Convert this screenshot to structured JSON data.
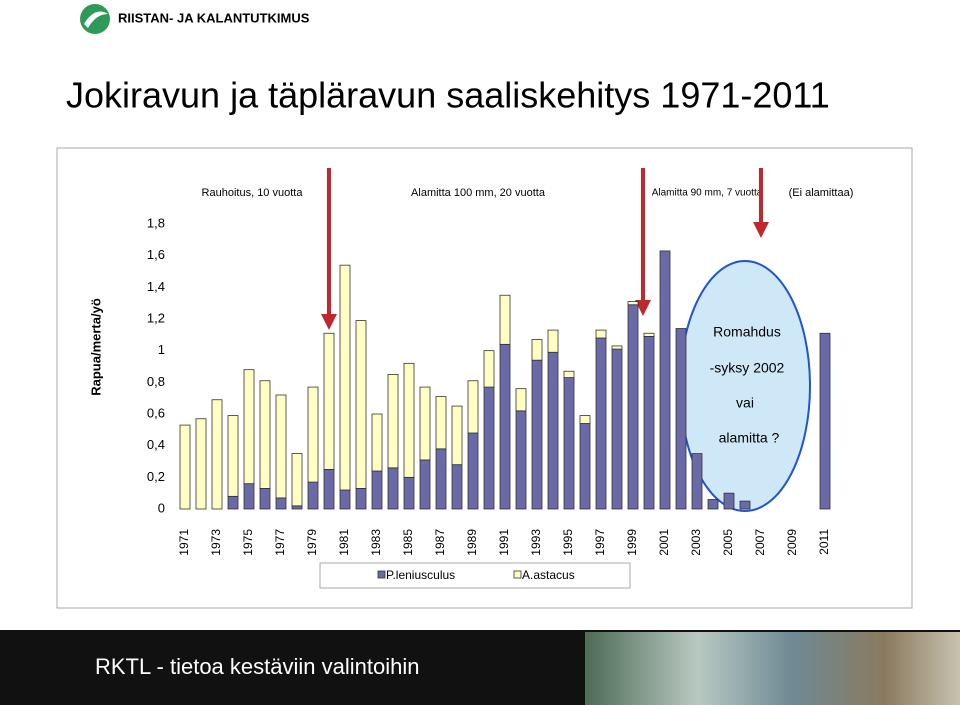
{
  "header": "RIISTAN- JA KALANTUTKIMUS",
  "title": "Jokiravun ja täpläravun saaliskehitys 1971-2011",
  "footer": "RKTL - tietoa kestäviin valintoihin",
  "chart_data": {
    "type": "stacked_bar",
    "y_label": "Rapua/merta/yö",
    "annotations": [
      "Rauhoitus, 10 vuotta",
      "Alamitta 100 mm, 20 vuotta",
      "Alamitta 90 mm, 7 vuotta",
      "(Ei alamittaa)"
    ],
    "callout": [
      "Romahdus",
      "-syksy 2002",
      "vai",
      "alamitta ?"
    ],
    "categories": [
      "1971",
      null,
      "1973",
      null,
      "1975",
      null,
      "1977",
      null,
      "1979",
      null,
      "1981",
      null,
      "1983",
      null,
      "1985",
      null,
      "1987",
      null,
      "1989",
      null,
      "1991",
      null,
      "1993",
      null,
      "1995",
      null,
      "1997",
      null,
      "1999",
      null,
      "2001",
      null,
      "2003",
      null,
      "2005",
      null,
      "2007",
      null,
      "2009",
      null,
      "2011"
    ],
    "series": [
      {
        "name": "P.leniusculus",
        "color": "#6a6aa8",
        "values": [
          0,
          0,
          0,
          0.08,
          0.16,
          0.13,
          0.07,
          0.02,
          0.17,
          0.25,
          0.12,
          0.13,
          0.24,
          0.26,
          0.2,
          0.31,
          0.38,
          0.28,
          0.48,
          0.77,
          1.04,
          0.62,
          0.94,
          0.99,
          0.83,
          0.54,
          1.08,
          1.01,
          1.29,
          1.09,
          1.63,
          1.14,
          0.35,
          0.06,
          0.1,
          0.05,
          null,
          null,
          null,
          null,
          1.11
        ]
      },
      {
        "name": "A.astacus",
        "color": "#ffffc4",
        "values": [
          0.53,
          0.57,
          0.69,
          0.51,
          0.72,
          0.68,
          0.65,
          0.33,
          0.6,
          0.86,
          1.42,
          1.06,
          0.36,
          0.59,
          0.72,
          0.46,
          0.33,
          0.37,
          0.33,
          0.23,
          0.31,
          0.14,
          0.13,
          0.14,
          0.04,
          0.05,
          0.05,
          0.02,
          0.02,
          0.02,
          0,
          0,
          0,
          0,
          0,
          0,
          null,
          null,
          null,
          null,
          0
        ]
      }
    ],
    "ylim": [
      0,
      1.8
    ],
    "yticks": [
      0,
      {
        "value": 0.2,
        "label": "0,2"
      },
      {
        "value": 0.4,
        "label": "0,4"
      },
      {
        "value": 0.6,
        "label": "0,6"
      },
      {
        "value": 0.8,
        "label": "0,8"
      },
      1,
      {
        "value": 1.2,
        "label": "1,2"
      },
      {
        "value": 1.4,
        "label": "1,4"
      },
      {
        "value": 1.6,
        "label": "1,6"
      },
      {
        "value": 1.8,
        "label": "1,8"
      }
    ],
    "legend": "bottom"
  }
}
